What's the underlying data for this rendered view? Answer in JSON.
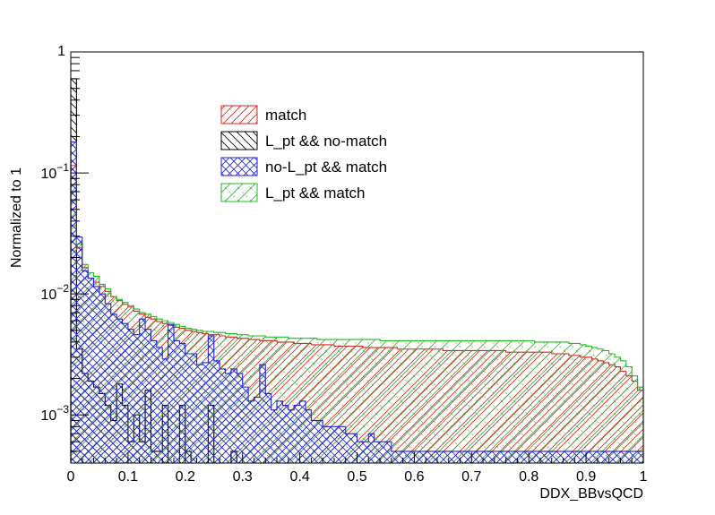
{
  "chart_data": {
    "type": "histogram",
    "xlabel": "DDX_BBvsQCD",
    "ylabel": "Normalized to 1",
    "xlim": [
      0,
      1
    ],
    "ylim": [
      0.0004,
      1
    ],
    "yscale": "log",
    "bins": 100,
    "x_ticks": [
      "0",
      "0.1",
      "0.2",
      "0.3",
      "0.4",
      "0.5",
      "0.6",
      "0.7",
      "0.8",
      "0.9",
      "1"
    ],
    "y_ticks": [
      {
        "value": 0.001,
        "base": "10",
        "exp": "−3"
      },
      {
        "value": 0.01,
        "base": "10",
        "exp": "−2"
      },
      {
        "value": 0.1,
        "base": "10",
        "exp": "−1"
      },
      {
        "value": 1,
        "base": "1",
        "exp": ""
      }
    ],
    "legend_position": "upper-center",
    "series": [
      {
        "name": "match",
        "color": "#dd2222",
        "hatch": "forward-diagonal",
        "values": [
          0.115,
          0.024,
          0.0165,
          0.0135,
          0.0125,
          0.0115,
          0.0105,
          0.0095,
          0.0088,
          0.0082,
          0.0078,
          0.0072,
          0.0068,
          0.0064,
          0.0062,
          0.0059,
          0.0057,
          0.0055,
          0.0053,
          0.0052,
          0.005,
          0.0049,
          0.0048,
          0.0047,
          0.0046,
          0.0046,
          0.0045,
          0.0044,
          0.0044,
          0.0043,
          0.0043,
          0.0042,
          0.0042,
          0.0041,
          0.0041,
          0.0041,
          0.004,
          0.004,
          0.004,
          0.0039,
          0.0039,
          0.0039,
          0.0038,
          0.0038,
          0.0038,
          0.0038,
          0.0037,
          0.0037,
          0.0037,
          0.0037,
          0.0037,
          0.0036,
          0.0036,
          0.0036,
          0.0036,
          0.0036,
          0.0036,
          0.0035,
          0.0035,
          0.0035,
          0.0035,
          0.0035,
          0.0035,
          0.0035,
          0.0035,
          0.0034,
          0.0034,
          0.0034,
          0.0034,
          0.0034,
          0.0034,
          0.0034,
          0.0034,
          0.0034,
          0.0034,
          0.0034,
          0.0033,
          0.0033,
          0.0033,
          0.0033,
          0.0033,
          0.0033,
          0.0033,
          0.0033,
          0.0032,
          0.0032,
          0.0032,
          0.0031,
          0.0031,
          0.003,
          0.003,
          0.0029,
          0.0028,
          0.0027,
          0.0026,
          0.0025,
          0.0023,
          0.0021,
          0.0019,
          0.0016
        ]
      },
      {
        "name": "L_pt && no-match",
        "color": "#000000",
        "hatch": "back-diagonal",
        "values": [
          0.6,
          0.0035,
          0.0022,
          0.0019,
          0.0017,
          0.0015,
          0.0012,
          0.0009,
          0.0018,
          0.0012,
          0.0006,
          0.001,
          0.0006,
          0.0016,
          0.0005,
          0.0005,
          0.0012,
          0.0004,
          0.0004,
          0.0012,
          0.0005,
          0.0004,
          0.0004,
          0.0004,
          0.0012,
          0.0004,
          0.0004,
          0.0004,
          0.0005,
          0.0004,
          0.0004,
          0.0004,
          0.0004,
          0.0004,
          0.0004,
          0.0004,
          0.0004,
          0.0004,
          0.0004,
          0.0004,
          0.0004,
          0.0004,
          0.0004,
          0.0004,
          0.0004,
          0.0004,
          0.0004,
          0.0004,
          0.0004,
          0.0004,
          0.0004,
          0.0004,
          0.0004,
          0.0004,
          0.0004,
          0.0004,
          0.0004,
          0.0004,
          0.0004,
          0.0004,
          0.0004,
          0.0004,
          0.0004,
          0.0004,
          0.0004,
          0.0004,
          0.0004,
          0.0004,
          0.0004,
          0.0004,
          0.0004,
          0.0004,
          0.0004,
          0.0004,
          0.0004,
          0.0004,
          0.0004,
          0.0004,
          0.0004,
          0.0004,
          0.0004,
          0.0004,
          0.0004,
          0.0004,
          0.0004,
          0.0004,
          0.0004,
          0.0004,
          0.0004,
          0.0004,
          0.0004,
          0.0004,
          0.0004,
          0.0004,
          0.0004,
          0.0004,
          0.0004,
          0.0004,
          0.0004,
          0.0004
        ]
      },
      {
        "name": "no-L_pt && match",
        "color": "#2222dd",
        "hatch": "cross",
        "values": [
          0.18,
          0.0295,
          0.0155,
          0.0135,
          0.0115,
          0.01,
          0.0083,
          0.0068,
          0.0062,
          0.0057,
          0.0051,
          0.0046,
          0.0062,
          0.0051,
          0.0041,
          0.0036,
          0.0029,
          0.0056,
          0.0041,
          0.0039,
          0.0032,
          0.0032,
          0.0026,
          0.0027,
          0.0045,
          0.0028,
          0.0024,
          0.0022,
          0.0024,
          0.0022,
          0.0017,
          0.0013,
          0.0014,
          0.0026,
          0.0015,
          0.0011,
          0.0013,
          0.0012,
          0.0011,
          0.0012,
          0.0013,
          0.0011,
          0.0009,
          0.0009,
          0.0008,
          0.0008,
          0.0008,
          0.0008,
          0.0007,
          0.0007,
          0.0006,
          0.0006,
          0.0007,
          0.0006,
          0.0006,
          0.0006,
          0.0005,
          0.0005,
          0.0005,
          0.0005,
          0.0005,
          0.0005,
          0.0005,
          0.0005,
          0.0005,
          0.0005,
          0.0005,
          0.0005,
          0.0005,
          0.0005,
          0.0005,
          0.0005,
          0.0005,
          0.0005,
          0.0005,
          0.0005,
          0.0005,
          0.0005,
          0.0005,
          0.0005,
          0.0005,
          0.0005,
          0.0005,
          0.0005,
          0.0005,
          0.0005,
          0.0005,
          0.0005,
          0.0005,
          0.0005,
          0.0005,
          0.0005,
          0.0005,
          0.0005,
          0.0005,
          0.0005,
          0.0005,
          0.0005,
          0.0005,
          0.0005
        ]
      },
      {
        "name": "L_pt && match",
        "color": "#22bb22",
        "hatch": "forward-diagonal-wide",
        "values": [
          0.09,
          0.026,
          0.0175,
          0.015,
          0.014,
          0.012,
          0.011,
          0.0095,
          0.009,
          0.0085,
          0.008,
          0.0075,
          0.007,
          0.0068,
          0.0065,
          0.0062,
          0.006,
          0.0058,
          0.0056,
          0.0054,
          0.0052,
          0.0051,
          0.005,
          0.0049,
          0.0049,
          0.0048,
          0.0048,
          0.0047,
          0.0047,
          0.0046,
          0.0046,
          0.0045,
          0.0045,
          0.0045,
          0.0044,
          0.0044,
          0.0044,
          0.0044,
          0.0043,
          0.0043,
          0.0043,
          0.0043,
          0.0043,
          0.0042,
          0.0042,
          0.0042,
          0.0042,
          0.0042,
          0.0042,
          0.0042,
          0.0042,
          0.0042,
          0.0042,
          0.0042,
          0.0041,
          0.0041,
          0.0041,
          0.0041,
          0.0041,
          0.0041,
          0.0041,
          0.0041,
          0.0041,
          0.0041,
          0.0041,
          0.0041,
          0.0041,
          0.0041,
          0.0041,
          0.0041,
          0.0041,
          0.0041,
          0.0041,
          0.0041,
          0.0041,
          0.0041,
          0.0041,
          0.0041,
          0.0041,
          0.0041,
          0.0041,
          0.004,
          0.004,
          0.004,
          0.004,
          0.004,
          0.004,
          0.0039,
          0.0039,
          0.0038,
          0.0037,
          0.0036,
          0.0035,
          0.0034,
          0.0032,
          0.003,
          0.0028,
          0.0025,
          0.0021,
          0.0017
        ]
      }
    ]
  }
}
